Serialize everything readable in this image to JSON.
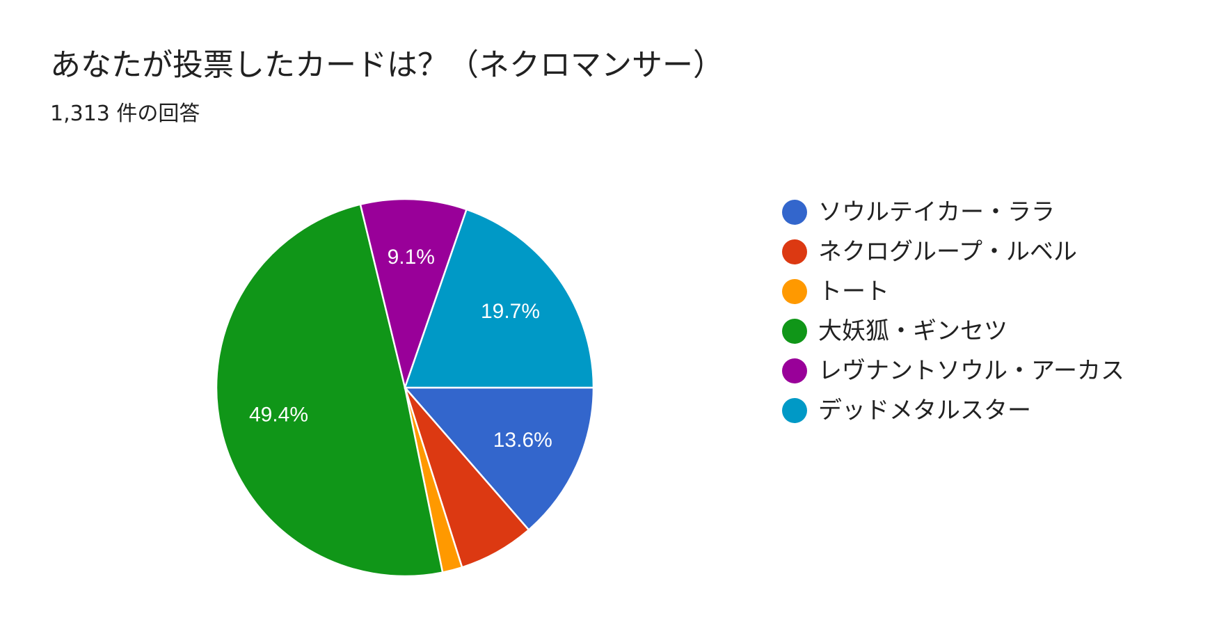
{
  "header": {
    "title": "あなたが投票したカードは？（ネクロマンサー）",
    "response_count": "1,313 件の回答"
  },
  "chart_data": {
    "type": "pie",
    "title": "あなたが投票したカードは？（ネクロマンサー）",
    "subtitle": "1,313 件の回答",
    "total_responses": 1313,
    "legend_position": "right",
    "slices": [
      {
        "label": "ソウルテイカー・ララ",
        "percent": 13.6,
        "display": "13.6%",
        "color": "#3366cc"
      },
      {
        "label": "ネクログループ・ルベル",
        "percent": 6.5,
        "display": "",
        "color": "#dc3912"
      },
      {
        "label": "トート",
        "percent": 1.7,
        "display": "",
        "color": "#ff9900"
      },
      {
        "label": "大妖狐・ギンセツ",
        "percent": 49.4,
        "display": "49.4%",
        "color": "#109618"
      },
      {
        "label": "レヴナントソウル・アーカス",
        "percent": 9.1,
        "display": "9.1%",
        "color": "#990099"
      },
      {
        "label": "デッドメタルスター",
        "percent": 19.7,
        "display": "19.7%",
        "color": "#0099c6"
      }
    ]
  }
}
